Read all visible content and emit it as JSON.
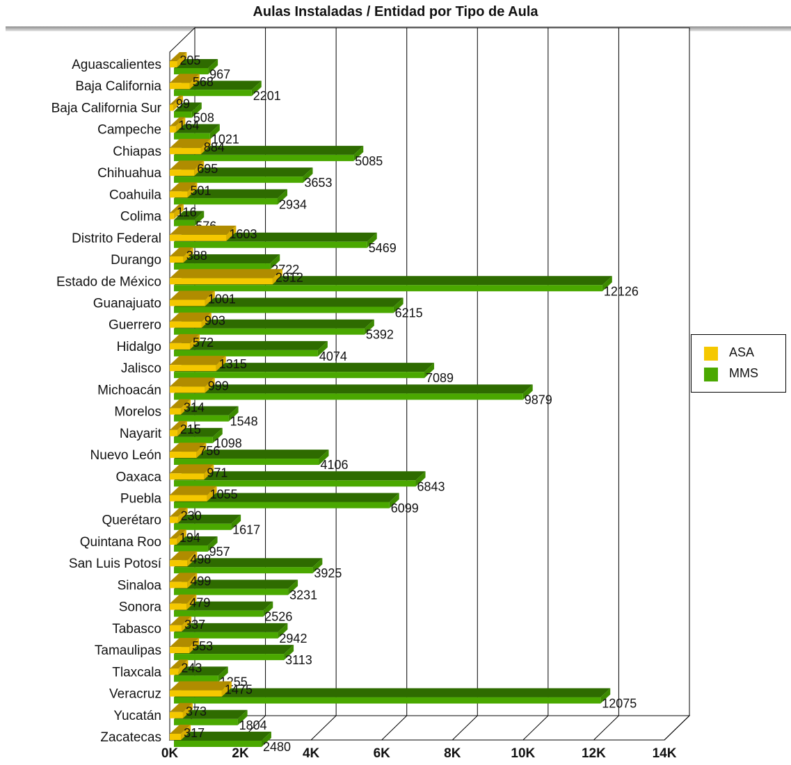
{
  "chart_data": {
    "type": "bar",
    "orientation": "horizontal",
    "title": "Aulas Instaladas / Entidad por Tipo de Aula",
    "categories": [
      "Aguascalientes",
      "Baja California",
      "Baja California Sur",
      "Campeche",
      "Chiapas",
      "Chihuahua",
      "Coahuila",
      "Colima",
      "Distrito Federal",
      "Durango",
      "Estado de México",
      "Guanajuato",
      "Guerrero",
      "Hidalgo",
      "Jalisco",
      "Michoacán",
      "Morelos",
      "Nayarit",
      "Nuevo León",
      "Oaxaca",
      "Puebla",
      "Querétaro",
      "Quintana Roo",
      "San Luis Potosí",
      "Sinaloa",
      "Sonora",
      "Tabasco",
      "Tamaulipas",
      "Tlaxcala",
      "Veracruz",
      "Yucatán",
      "Zacatecas"
    ],
    "series": [
      {
        "name": "ASA",
        "color": "#f5c800",
        "values": [
          205,
          568,
          99,
          164,
          884,
          695,
          501,
          116,
          1603,
          388,
          2912,
          1001,
          903,
          572,
          1315,
          999,
          314,
          215,
          756,
          971,
          1055,
          230,
          194,
          498,
          499,
          479,
          337,
          553,
          243,
          1475,
          373,
          317
        ]
      },
      {
        "name": "MMS",
        "color": "#4aa800",
        "values": [
          967,
          2201,
          508,
          1021,
          5085,
          3653,
          2934,
          576,
          5469,
          2722,
          12126,
          6215,
          5392,
          4074,
          7089,
          9879,
          1548,
          1098,
          4106,
          6843,
          6099,
          1617,
          957,
          3925,
          3231,
          2526,
          2942,
          3113,
          1255,
          12075,
          1804,
          2480
        ]
      }
    ],
    "x_ticks": [
      "0K",
      "2K",
      "4K",
      "6K",
      "8K",
      "10K",
      "12K",
      "14K"
    ],
    "xlim": [
      0,
      14000
    ],
    "grid": true,
    "legend_position": "right"
  }
}
